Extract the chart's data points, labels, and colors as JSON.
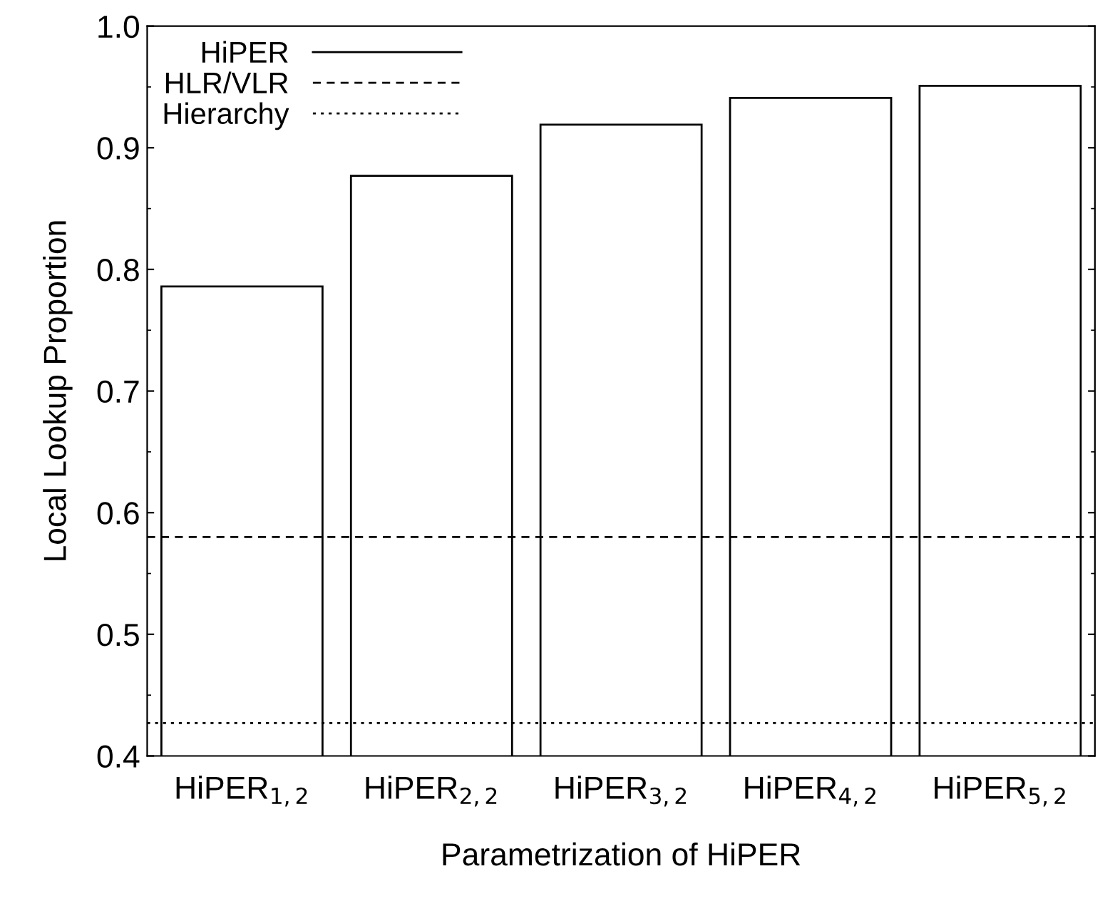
{
  "chart_data": {
    "type": "bar",
    "xlabel": "Parametrization of HiPER",
    "ylabel": "Local Lookup Proportion",
    "categories": [
      "HiPER$_{1,2}$",
      "HiPER$_{2,2}$",
      "HiPER$_{3,2}$",
      "HiPER$_{4,2}$",
      "HiPER$_{5,2}$"
    ],
    "series": [
      {
        "name": "HiPER",
        "color": "#ffffff",
        "values": [
          0.786,
          0.877,
          0.919,
          0.941,
          0.951
        ]
      }
    ],
    "ref_lines": [
      {
        "axis": "y",
        "value": 0.58,
        "label": "HLR/VLR",
        "color": "#000000",
        "line_style": "dashed"
      },
      {
        "axis": "y",
        "value": 0.427,
        "label": "Hierarchy",
        "color": "#000000",
        "line_style": "dotted"
      }
    ],
    "ylim": [
      0.4,
      1.0
    ],
    "yticks": [
      0.4,
      0.5,
      0.6,
      0.7,
      0.8,
      0.9,
      {
        "value": 1.0,
        "label": "1.0"
      }
    ],
    "legend": "top left",
    "grid": false
  }
}
